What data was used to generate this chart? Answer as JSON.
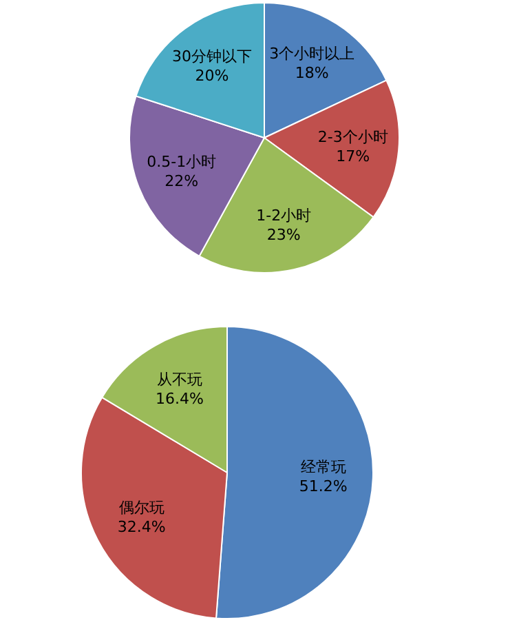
{
  "chart_data": [
    {
      "type": "pie",
      "categories": [
        "3个小时以上",
        "2-3个小时",
        "1-2小时",
        "0.5-1小时",
        "30分钟以下"
      ],
      "values": [
        18,
        17,
        23,
        22,
        20
      ],
      "value_labels": [
        "18%",
        "17%",
        "23%",
        "22%",
        "20%"
      ],
      "colors": [
        "#4f81bd",
        "#c0504d",
        "#9bbb59",
        "#8064a2",
        "#4bacc6"
      ]
    },
    {
      "type": "pie",
      "categories": [
        "经常玩",
        "偶尔玩",
        "从不玩"
      ],
      "values": [
        51.2,
        32.4,
        16.4
      ],
      "value_labels": [
        "51.2%",
        "32.4%",
        "16.4%"
      ],
      "colors": [
        "#4f81bd",
        "#c0504d",
        "#9bbb59"
      ]
    }
  ]
}
